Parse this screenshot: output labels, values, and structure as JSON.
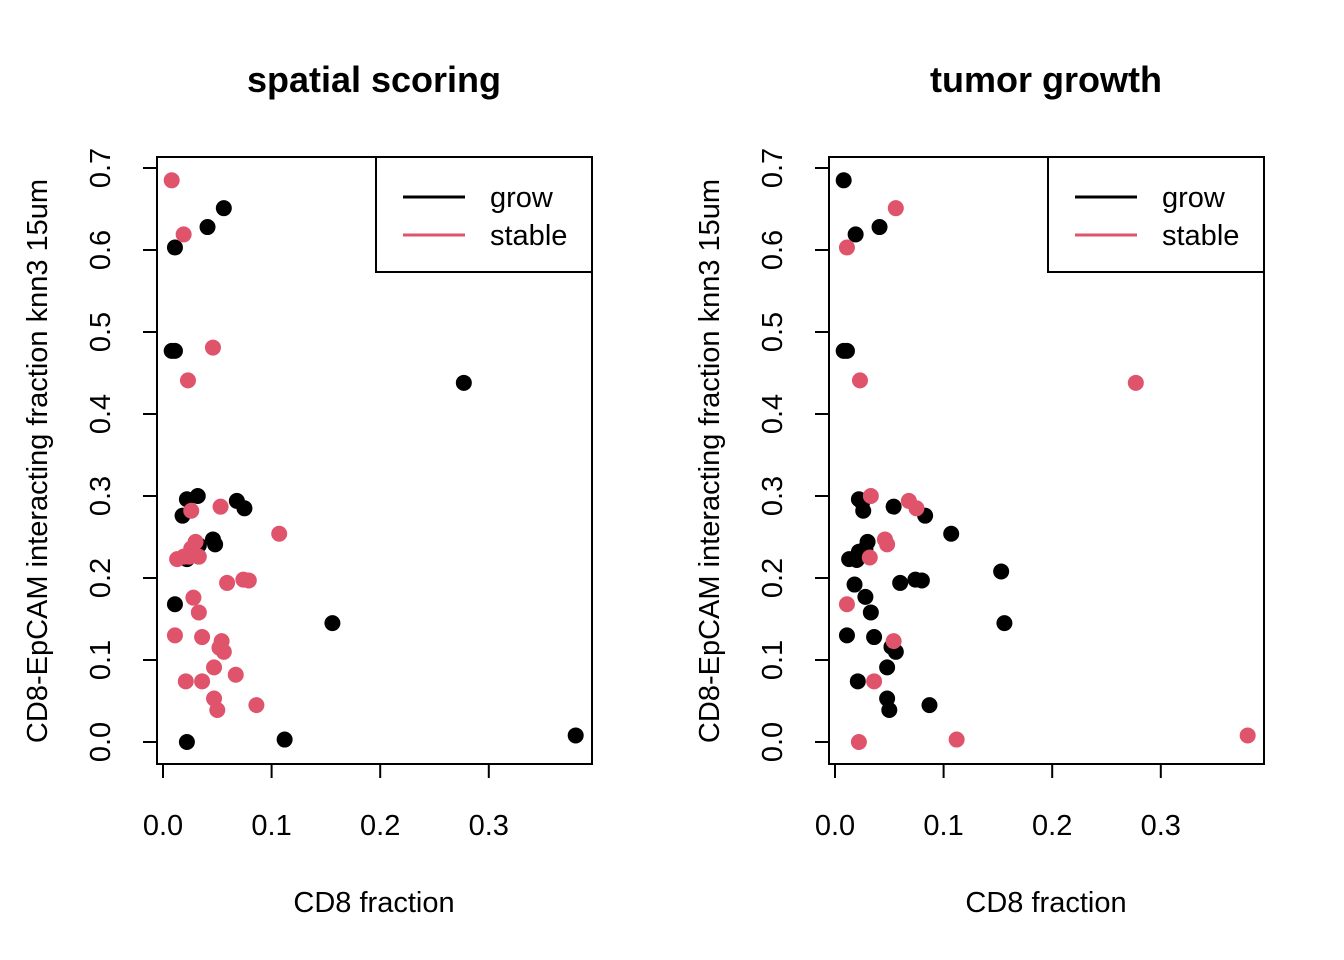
{
  "colors": {
    "grow": "#000000",
    "stable": "#DF536B"
  },
  "chart_data": [
    {
      "type": "scatter",
      "title": "spatial scoring",
      "xlabel": "CD8 fraction",
      "ylabel": "CD8-EpCAM interacting fraction knn3 15um",
      "xlim": [
        0.0,
        0.38
      ],
      "ylim": [
        0.0,
        0.7
      ],
      "x_ticks": [
        "0.0",
        "0.1",
        "0.2",
        "0.3"
      ],
      "y_ticks": [
        "0.0",
        "0.1",
        "0.2",
        "0.3",
        "0.4",
        "0.5",
        "0.6",
        "0.7"
      ],
      "grid": false,
      "legend_position": "top-right",
      "legend": [
        {
          "label": "grow",
          "color": "#000000"
        },
        {
          "label": "stable",
          "color": "#DF536B"
        }
      ],
      "series": [
        {
          "name": "grow",
          "color": "#000000",
          "points": [
            [
              0.011,
              0.603
            ],
            [
              0.041,
              0.628
            ],
            [
              0.056,
              0.651
            ],
            [
              0.008,
              0.477
            ],
            [
              0.011,
              0.477
            ],
            [
              0.277,
              0.438
            ],
            [
              0.022,
              0.296
            ],
            [
              0.032,
              0.3
            ],
            [
              0.068,
              0.294
            ],
            [
              0.075,
              0.285
            ],
            [
              0.018,
              0.276
            ],
            [
              0.046,
              0.247
            ],
            [
              0.048,
              0.241
            ],
            [
              0.033,
              0.24
            ],
            [
              0.03,
              0.236
            ],
            [
              0.022,
              0.223
            ],
            [
              0.011,
              0.168
            ],
            [
              0.156,
              0.145
            ],
            [
              0.022,
              0.0
            ],
            [
              0.112,
              0.003
            ],
            [
              0.38,
              0.008
            ]
          ]
        },
        {
          "name": "stable",
          "color": "#DF536B",
          "points": [
            [
              0.008,
              0.685
            ],
            [
              0.019,
              0.619
            ],
            [
              0.046,
              0.481
            ],
            [
              0.023,
              0.441
            ],
            [
              0.053,
              0.287
            ],
            [
              0.026,
              0.282
            ],
            [
              0.107,
              0.254
            ],
            [
              0.03,
              0.244
            ],
            [
              0.026,
              0.236
            ],
            [
              0.033,
              0.226
            ],
            [
              0.024,
              0.226
            ],
            [
              0.019,
              0.226
            ],
            [
              0.013,
              0.223
            ],
            [
              0.074,
              0.198
            ],
            [
              0.079,
              0.197
            ],
            [
              0.059,
              0.194
            ],
            [
              0.028,
              0.176
            ],
            [
              0.033,
              0.158
            ],
            [
              0.011,
              0.13
            ],
            [
              0.036,
              0.128
            ],
            [
              0.054,
              0.123
            ],
            [
              0.052,
              0.115
            ],
            [
              0.056,
              0.11
            ],
            [
              0.047,
              0.091
            ],
            [
              0.067,
              0.082
            ],
            [
              0.021,
              0.074
            ],
            [
              0.036,
              0.074
            ],
            [
              0.047,
              0.053
            ],
            [
              0.086,
              0.045
            ],
            [
              0.05,
              0.039
            ]
          ]
        }
      ]
    },
    {
      "type": "scatter",
      "title": "tumor growth",
      "xlabel": "CD8 fraction",
      "ylabel": "CD8-EpCAM interacting fraction knn3 15um",
      "xlim": [
        0.0,
        0.38
      ],
      "ylim": [
        0.0,
        0.7
      ],
      "x_ticks": [
        "0.0",
        "0.1",
        "0.2",
        "0.3"
      ],
      "y_ticks": [
        "0.0",
        "0.1",
        "0.2",
        "0.3",
        "0.4",
        "0.5",
        "0.6",
        "0.7"
      ],
      "grid": false,
      "legend_position": "top-right",
      "legend": [
        {
          "label": "grow",
          "color": "#000000"
        },
        {
          "label": "stable",
          "color": "#DF536B"
        }
      ],
      "series": [
        {
          "name": "grow",
          "color": "#000000",
          "points": [
            [
              0.008,
              0.685
            ],
            [
              0.019,
              0.619
            ],
            [
              0.041,
              0.628
            ],
            [
              0.008,
              0.477
            ],
            [
              0.011,
              0.477
            ],
            [
              0.022,
              0.296
            ],
            [
              0.025,
              0.292
            ],
            [
              0.054,
              0.287
            ],
            [
              0.026,
              0.282
            ],
            [
              0.083,
              0.276
            ],
            [
              0.107,
              0.254
            ],
            [
              0.03,
              0.244
            ],
            [
              0.028,
              0.236
            ],
            [
              0.022,
              0.232
            ],
            [
              0.013,
              0.223
            ],
            [
              0.02,
              0.222
            ],
            [
              0.153,
              0.208
            ],
            [
              0.074,
              0.198
            ],
            [
              0.08,
              0.197
            ],
            [
              0.06,
              0.194
            ],
            [
              0.018,
              0.192
            ],
            [
              0.028,
              0.177
            ],
            [
              0.033,
              0.158
            ],
            [
              0.156,
              0.145
            ],
            [
              0.011,
              0.13
            ],
            [
              0.036,
              0.128
            ],
            [
              0.052,
              0.116
            ],
            [
              0.056,
              0.11
            ],
            [
              0.048,
              0.091
            ],
            [
              0.021,
              0.074
            ],
            [
              0.048,
              0.053
            ],
            [
              0.087,
              0.045
            ],
            [
              0.05,
              0.039
            ]
          ]
        },
        {
          "name": "stable",
          "color": "#DF536B",
          "points": [
            [
              0.056,
              0.651
            ],
            [
              0.011,
              0.603
            ],
            [
              0.023,
              0.441
            ],
            [
              0.277,
              0.438
            ],
            [
              0.033,
              0.3
            ],
            [
              0.068,
              0.294
            ],
            [
              0.075,
              0.285
            ],
            [
              0.046,
              0.247
            ],
            [
              0.048,
              0.241
            ],
            [
              0.032,
              0.225
            ],
            [
              0.011,
              0.168
            ],
            [
              0.054,
              0.123
            ],
            [
              0.036,
              0.074
            ],
            [
              0.022,
              0.0
            ],
            [
              0.112,
              0.003
            ],
            [
              0.38,
              0.008
            ]
          ]
        }
      ]
    }
  ]
}
